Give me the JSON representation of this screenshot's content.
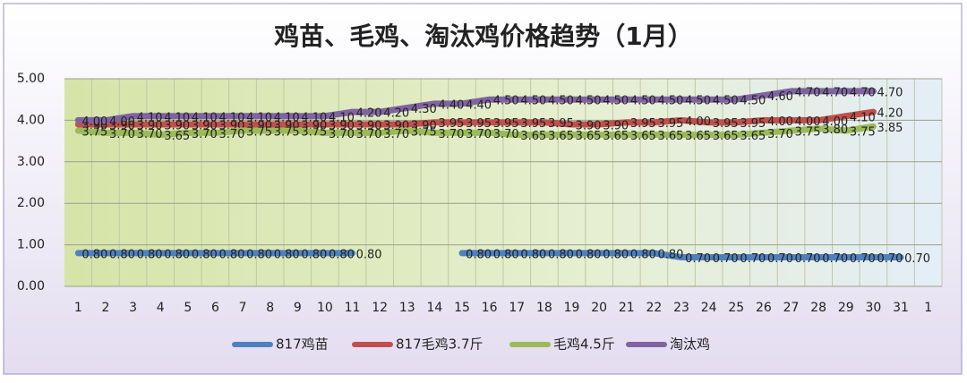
{
  "chart_data": {
    "type": "line",
    "title": "鸡苗、毛鸡、淘汰鸡价格趋势（1月）",
    "categories": [
      "1",
      "2",
      "3",
      "4",
      "5",
      "6",
      "7",
      "8",
      "9",
      "10",
      "11",
      "12",
      "13",
      "14",
      "15",
      "16",
      "17",
      "18",
      "19",
      "20",
      "21",
      "22",
      "23",
      "24",
      "25",
      "26",
      "27",
      "28",
      "29",
      "30",
      "31",
      "1"
    ],
    "ylim": [
      0,
      5
    ],
    "yticks": [
      {
        "value": 0,
        "label": "0.00"
      },
      {
        "value": 1,
        "label": "1.00"
      },
      {
        "value": 2,
        "label": "2.00"
      },
      {
        "value": 3,
        "label": "3.00"
      },
      {
        "value": 4,
        "label": "4.00"
      },
      {
        "value": 5,
        "label": "5.00"
      }
    ],
    "grid": true,
    "legend": "bottom",
    "series": [
      {
        "name": "817鸡苗",
        "color": "#4f81bd",
        "values": [
          0.8,
          0.8,
          0.8,
          0.8,
          0.8,
          0.8,
          0.8,
          0.8,
          0.8,
          0.8,
          0.8,
          null,
          null,
          null,
          0.8,
          0.8,
          0.8,
          0.8,
          0.8,
          0.8,
          0.8,
          0.8,
          0.7,
          0.7,
          0.7,
          0.7,
          0.7,
          0.7,
          0.7,
          0.7,
          0.7,
          null
        ],
        "value_labels": [
          "0.80",
          "0.80",
          "0.80",
          "0.80",
          "0.80",
          "0.80",
          "0.80",
          "0.80",
          "0.80",
          "0.80",
          "0.80",
          null,
          null,
          null,
          "0.80",
          "0.80",
          "0.80",
          "0.80",
          "0.80",
          "0.80",
          "0.80",
          "0.80",
          "0.70",
          "0.70",
          "0.70",
          "0.70",
          "0.70",
          "0.70",
          "0.70",
          "0.70",
          "0.70",
          null
        ]
      },
      {
        "name": "817毛鸡3.7斤",
        "color": "#c0504d",
        "values": [
          3.9,
          3.9,
          3.9,
          3.9,
          3.9,
          3.9,
          3.9,
          3.9,
          3.9,
          3.9,
          3.9,
          3.9,
          3.9,
          3.95,
          3.95,
          3.95,
          3.95,
          3.95,
          3.9,
          3.9,
          3.95,
          3.95,
          4.0,
          3.95,
          3.95,
          4.0,
          4.0,
          4.0,
          4.1,
          4.2,
          null,
          null
        ],
        "value_labels": [
          "3.90",
          "3.90",
          "3.90",
          "3.90",
          "3.90",
          "3.90",
          "3.90",
          "3.90",
          "3.90",
          "3.90",
          "3.90",
          "3.90",
          "3.90",
          "3.95",
          "3.95",
          "3.95",
          "3.95",
          "3.95",
          "3.90",
          "3.90",
          "3.95",
          "3.95",
          "4.00",
          "3.95",
          "3.95",
          "4.00",
          "4.00",
          "4.00",
          "4.10",
          "4.20",
          null,
          null
        ]
      },
      {
        "name": "毛鸡4.5斤",
        "color": "#9bbb59",
        "values": [
          3.75,
          3.7,
          3.7,
          3.65,
          3.7,
          3.7,
          3.75,
          3.75,
          3.75,
          3.7,
          3.7,
          3.7,
          3.75,
          3.7,
          3.7,
          3.7,
          3.65,
          3.65,
          3.65,
          3.65,
          3.65,
          3.65,
          3.65,
          3.65,
          3.65,
          3.7,
          3.75,
          3.8,
          3.75,
          3.85,
          null,
          null
        ],
        "value_labels": [
          "3.75",
          "3.70",
          "3.70",
          "3.65",
          "3.70",
          "3.70",
          "3.75",
          "3.75",
          "3.75",
          "3.70",
          "3.70",
          "3.70",
          "3.75",
          "3.70",
          "3.70",
          "3.70",
          "3.65",
          "3.65",
          "3.65",
          "3.65",
          "3.65",
          "3.65",
          "3.65",
          "3.65",
          "3.65",
          "3.70",
          "3.75",
          "3.80",
          "3.75",
          "3.85",
          null,
          null
        ]
      },
      {
        "name": "淘汰鸡",
        "color": "#8064a2",
        "values": [
          4.0,
          4.0,
          4.1,
          4.1,
          4.1,
          4.1,
          4.1,
          4.1,
          4.1,
          4.1,
          4.2,
          4.2,
          4.3,
          4.4,
          4.4,
          4.5,
          4.5,
          4.5,
          4.5,
          4.5,
          4.5,
          4.5,
          4.5,
          4.5,
          4.5,
          4.6,
          4.7,
          4.7,
          4.7,
          4.7,
          null,
          null
        ],
        "value_labels": [
          "4.00",
          "4.00",
          "4.10",
          "4.10",
          "4.10",
          "4.10",
          "4.10",
          "4.10",
          "4.10",
          "4.10",
          "4.20",
          "4.20",
          "4.30",
          "4.40",
          "4.40",
          "4.50",
          "4.50",
          "4.50",
          "4.50",
          "4.50",
          "4.50",
          "4.50",
          "4.50",
          "4.50",
          "4.50",
          "4.60",
          "4.70",
          "4.70",
          "4.70",
          "4.70",
          null,
          null
        ]
      }
    ]
  }
}
